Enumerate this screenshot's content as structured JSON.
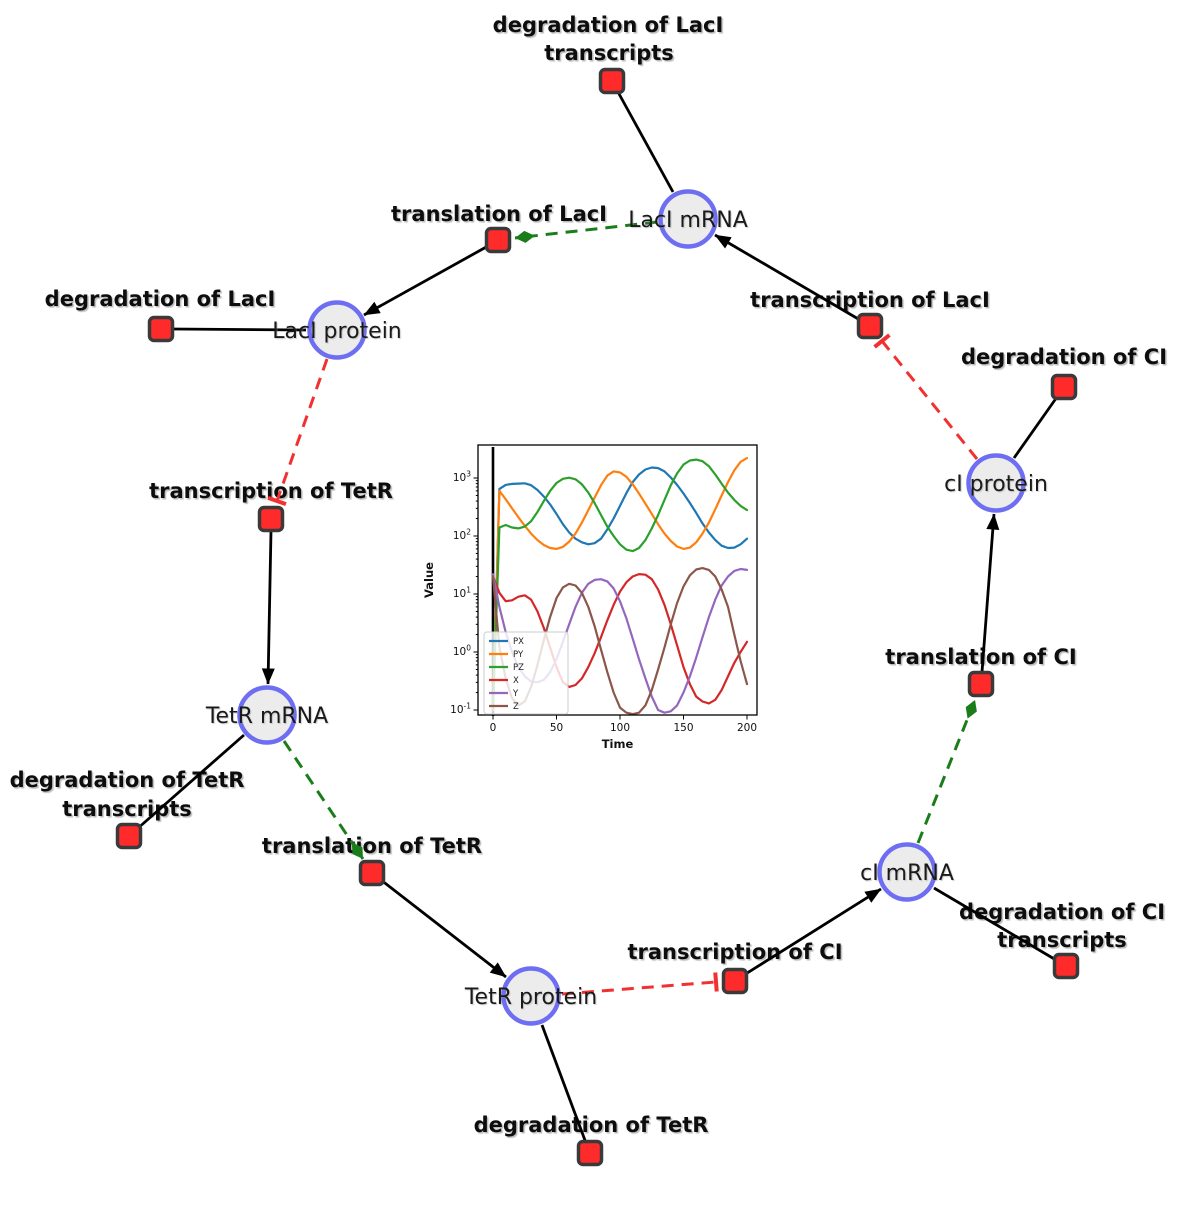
{
  "figure": {
    "species": [
      {
        "label": "LacI mRNA"
      },
      {
        "label": "LacI protein"
      },
      {
        "label": "cI protein"
      },
      {
        "label": "TetR mRNA"
      },
      {
        "label": "cI mRNA"
      },
      {
        "label": "TetR protein"
      }
    ],
    "reactions": [
      {
        "lines": [
          "degradation of LacI",
          "transcripts"
        ]
      },
      {
        "lines": [
          "translation of LacI"
        ]
      },
      {
        "lines": [
          "degradation of LacI"
        ]
      },
      {
        "lines": [
          "transcription of LacI"
        ]
      },
      {
        "lines": [
          "degradation of CI"
        ]
      },
      {
        "lines": [
          "transcription of TetR"
        ]
      },
      {
        "lines": [
          "translation of CI"
        ]
      },
      {
        "lines": [
          "translation of TetR"
        ]
      },
      {
        "lines": [
          "transcription of CI"
        ]
      },
      {
        "lines": [
          "degradation of TetR",
          "transcripts"
        ]
      },
      {
        "lines": [
          "degradation of CI",
          "transcripts"
        ]
      },
      {
        "lines": [
          "degradation of TetR"
        ]
      }
    ],
    "edge_colors": {
      "reaction_edge": "#000000",
      "modifier_edge": "#1a7d1a",
      "inhibition_edge": "#f23030"
    },
    "node_colors": {
      "species_fill": "#ececec",
      "species_stroke": "#6e6ef2",
      "reaction_fill": "#ff2b2b",
      "reaction_stroke": "#3a3a3a"
    }
  },
  "chart_data": {
    "type": "line",
    "title": "",
    "xlabel": "Time",
    "ylabel": "Value",
    "y_scale": "log",
    "xlim": [
      -12,
      208
    ],
    "ylim": [
      0.082,
      3700
    ],
    "grid": false,
    "legend_position": "lower left",
    "x_ticks": [
      0,
      50,
      100,
      150,
      200
    ],
    "x_tick_labels": [
      "0",
      "50",
      "100",
      "150",
      "200"
    ],
    "y_tick_base": "10",
    "y_tick_exponents": [
      "-1",
      "0",
      "1",
      "2",
      "3"
    ],
    "t0_vline_x": 0,
    "x": [
      0,
      5,
      10,
      15,
      20,
      25,
      30,
      35,
      40,
      45,
      50,
      55,
      60,
      65,
      70,
      75,
      80,
      85,
      90,
      95,
      100,
      105,
      110,
      115,
      120,
      125,
      130,
      135,
      140,
      145,
      150,
      155,
      160,
      165,
      170,
      175,
      180,
      185,
      190,
      195,
      200
    ],
    "series": [
      {
        "name": "PX",
        "color": "#1f77b4",
        "values": [
          0.1,
          650,
          760,
          790,
          800,
          810,
          750,
          620,
          480,
          350,
          240,
          160,
          115,
          90,
          78,
          72,
          75,
          90,
          130,
          200,
          330,
          550,
          850,
          1150,
          1400,
          1520,
          1480,
          1300,
          1020,
          760,
          540,
          370,
          250,
          165,
          115,
          85,
          68,
          62,
          63,
          72,
          90
        ]
      },
      {
        "name": "PY",
        "color": "#ff7f0e",
        "values": [
          0.1,
          600,
          430,
          300,
          210,
          150,
          110,
          85,
          70,
          62,
          60,
          65,
          80,
          110,
          170,
          280,
          460,
          750,
          1100,
          1300,
          1250,
          1050,
          780,
          540,
          360,
          240,
          160,
          110,
          82,
          66,
          60,
          63,
          78,
          110,
          170,
          290,
          500,
          850,
          1350,
          1900,
          2200
        ]
      },
      {
        "name": "PZ",
        "color": "#2ca02c",
        "values": [
          0.1,
          140,
          155,
          140,
          135,
          145,
          180,
          260,
          400,
          600,
          820,
          970,
          1010,
          950,
          780,
          560,
          370,
          230,
          145,
          100,
          72,
          58,
          55,
          62,
          85,
          135,
          230,
          420,
          750,
          1200,
          1700,
          2000,
          2080,
          1950,
          1600,
          1150,
          800,
          560,
          420,
          330,
          280
        ]
      },
      {
        "name": "X",
        "color": "#d62728",
        "values": [
          20,
          10.5,
          7.5,
          7.8,
          9.0,
          9.5,
          8.0,
          5.0,
          2.6,
          1.2,
          0.55,
          0.3,
          0.25,
          0.27,
          0.35,
          0.55,
          0.95,
          1.8,
          3.5,
          6.5,
          11,
          16,
          20,
          22,
          21.5,
          18,
          12,
          6.5,
          3.0,
          1.3,
          0.55,
          0.28,
          0.17,
          0.14,
          0.13,
          0.15,
          0.22,
          0.38,
          0.65,
          1.0,
          1.5
        ]
      },
      {
        "name": "Y",
        "color": "#9467bd",
        "values": [
          22,
          6.0,
          2.2,
          1.0,
          0.55,
          0.38,
          0.31,
          0.3,
          0.33,
          0.45,
          0.75,
          1.5,
          3.0,
          6.0,
          10.5,
          15,
          17.5,
          18,
          16.5,
          12.5,
          7.5,
          3.8,
          1.7,
          0.75,
          0.35,
          0.17,
          0.1,
          0.09,
          0.095,
          0.12,
          0.2,
          0.38,
          0.8,
          1.8,
          4.0,
          8.0,
          14,
          20,
          25,
          27,
          26
        ]
      },
      {
        "name": "Z",
        "color": "#8c564b",
        "values": [
          20,
          1.2,
          0.35,
          0.16,
          0.12,
          0.14,
          0.25,
          0.6,
          1.6,
          4.0,
          8.5,
          13,
          15,
          14,
          10.5,
          6.0,
          2.8,
          1.1,
          0.45,
          0.2,
          0.11,
          0.09,
          0.085,
          0.09,
          0.12,
          0.22,
          0.5,
          1.2,
          3.0,
          7.0,
          13.5,
          21,
          26.5,
          28,
          26,
          20,
          12,
          6.0,
          2.0,
          0.7,
          0.28
        ]
      }
    ]
  }
}
